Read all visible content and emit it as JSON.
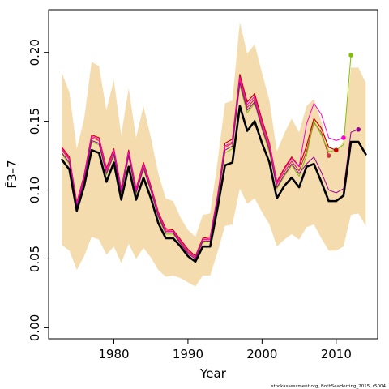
{
  "chart_data": {
    "type": "line",
    "title": "",
    "xlabel": "Year",
    "ylabel": "F̄3–7",
    "xlim": [
      1971.2,
      2015.6
    ],
    "ylim": [
      -0.008,
      0.231
    ],
    "x_ticks": [
      1980,
      1990,
      2000,
      2010
    ],
    "y_ticks": [
      0.0,
      0.05,
      0.1,
      0.15,
      0.2
    ],
    "y_tick_labels": [
      "0.00",
      "0.05",
      "0.10",
      "0.15",
      "0.20"
    ],
    "grid": false,
    "legend": "none",
    "credit": "stockassessment.org, BothSeaHerring_2015, r5004",
    "colors": {
      "band": "#f5dcaf",
      "main": "#000000",
      "retro_1": "#cc0000",
      "retro_2": "#c83c3c",
      "retro_3": "#7fc000",
      "retro_4": "#ff00cc",
      "retro_5": "#990099"
    },
    "band": {
      "x": [
        1973,
        1974,
        1975,
        1976,
        1977,
        1978,
        1979,
        1980,
        1981,
        1982,
        1983,
        1984,
        1985,
        1986,
        1987,
        1988,
        1989,
        1990,
        1991,
        1992,
        1993,
        1994,
        1995,
        1996,
        1997,
        1998,
        1999,
        2000,
        2001,
        2002,
        2003,
        2004,
        2005,
        2006,
        2007,
        2008,
        2009,
        2010,
        2011,
        2012,
        2013,
        2014
      ],
      "lower": [
        0.06,
        0.056,
        0.042,
        0.052,
        0.066,
        0.064,
        0.053,
        0.059,
        0.047,
        0.061,
        0.05,
        0.058,
        0.051,
        0.042,
        0.037,
        0.038,
        0.036,
        0.033,
        0.03,
        0.038,
        0.038,
        0.055,
        0.074,
        0.075,
        0.101,
        0.09,
        0.094,
        0.084,
        0.075,
        0.059,
        0.064,
        0.068,
        0.064,
        0.073,
        0.075,
        0.065,
        0.056,
        0.056,
        0.059,
        0.082,
        0.083,
        0.074
      ],
      "upper": [
        0.185,
        0.171,
        0.13,
        0.152,
        0.193,
        0.19,
        0.158,
        0.18,
        0.14,
        0.174,
        0.138,
        0.161,
        0.138,
        0.112,
        0.094,
        0.092,
        0.08,
        0.071,
        0.066,
        0.082,
        0.083,
        0.121,
        0.163,
        0.165,
        0.222,
        0.199,
        0.206,
        0.185,
        0.165,
        0.128,
        0.141,
        0.152,
        0.142,
        0.161,
        0.166,
        0.15,
        0.13,
        0.129,
        0.135,
        0.189,
        0.189,
        0.178
      ]
    },
    "series": [
      {
        "x": [
          1973,
          1974,
          1975,
          1976,
          1977,
          1978,
          1979,
          1980,
          1981,
          1982,
          1983,
          1984,
          1985,
          1986,
          1987,
          1988,
          1989,
          1990,
          1991,
          1992,
          1993,
          1994,
          1995,
          1996,
          1997,
          1998,
          1999,
          2000,
          2001,
          2002,
          2003,
          2004,
          2005,
          2006,
          2007,
          2008,
          2009,
          2010,
          2011,
          2012,
          2013,
          2014
        ],
        "y": [
          0.122,
          0.115,
          0.085,
          0.103,
          0.129,
          0.127,
          0.106,
          0.12,
          0.093,
          0.117,
          0.093,
          0.109,
          0.094,
          0.076,
          0.065,
          0.065,
          0.059,
          0.052,
          0.048,
          0.059,
          0.059,
          0.087,
          0.118,
          0.12,
          0.161,
          0.143,
          0.15,
          0.134,
          0.12,
          0.094,
          0.103,
          0.109,
          0.102,
          0.117,
          0.119,
          0.106,
          0.092,
          0.092,
          0.096,
          0.135,
          0.135,
          0.126
        ],
        "color_key": "main",
        "width": 2.6
      },
      {
        "x": [
          1973,
          1974,
          1975,
          1976,
          1977,
          1978,
          1979,
          1980,
          1981,
          1982,
          1983,
          1984,
          1985,
          1986,
          1987,
          1988,
          1989,
          1990,
          1991,
          1992,
          1993,
          1994,
          1995,
          1996,
          1997,
          1998,
          1999,
          2000,
          2001,
          2002,
          2003,
          2004,
          2005,
          2006,
          2007,
          2008,
          2009,
          2010
        ],
        "y": [
          0.131,
          0.124,
          0.091,
          0.111,
          0.14,
          0.138,
          0.116,
          0.13,
          0.101,
          0.129,
          0.101,
          0.12,
          0.103,
          0.084,
          0.072,
          0.071,
          0.064,
          0.057,
          0.052,
          0.065,
          0.066,
          0.096,
          0.134,
          0.137,
          0.184,
          0.164,
          0.17,
          0.151,
          0.134,
          0.106,
          0.116,
          0.124,
          0.117,
          0.132,
          0.152,
          0.145,
          0.131,
          0.129
        ],
        "color_key": "retro_1",
        "width": 1.2,
        "end_point": true
      },
      {
        "x": [
          1973,
          1974,
          1975,
          1976,
          1977,
          1978,
          1979,
          1980,
          1981,
          1982,
          1983,
          1984,
          1985,
          1986,
          1987,
          1988,
          1989,
          1990,
          1991,
          1992,
          1993,
          1994,
          1995,
          1996,
          1997,
          1998,
          1999,
          2000,
          2001,
          2002,
          2003,
          2004,
          2005,
          2006,
          2007,
          2008,
          2009
        ],
        "y": [
          0.129,
          0.122,
          0.089,
          0.108,
          0.138,
          0.136,
          0.114,
          0.128,
          0.099,
          0.127,
          0.099,
          0.118,
          0.101,
          0.082,
          0.07,
          0.07,
          0.062,
          0.055,
          0.051,
          0.064,
          0.064,
          0.094,
          0.131,
          0.134,
          0.18,
          0.16,
          0.166,
          0.147,
          0.131,
          0.104,
          0.113,
          0.121,
          0.114,
          0.128,
          0.149,
          0.142,
          0.125
        ],
        "color_key": "retro_2",
        "width": 1.2,
        "end_point": true
      },
      {
        "x": [
          1973,
          1974,
          1975,
          1976,
          1977,
          1978,
          1979,
          1980,
          1981,
          1982,
          1983,
          1984,
          1985,
          1986,
          1987,
          1988,
          1989,
          1990,
          1991,
          1992,
          1993,
          1994,
          1995,
          1996,
          1997,
          1998,
          1999,
          2000,
          2001,
          2002,
          2003,
          2004,
          2005,
          2006,
          2007,
          2008,
          2009,
          2010,
          2011,
          2012
        ],
        "y": [
          0.126,
          0.119,
          0.087,
          0.106,
          0.135,
          0.133,
          0.111,
          0.125,
          0.097,
          0.124,
          0.097,
          0.115,
          0.099,
          0.08,
          0.068,
          0.068,
          0.061,
          0.054,
          0.05,
          0.062,
          0.063,
          0.092,
          0.127,
          0.13,
          0.176,
          0.156,
          0.163,
          0.144,
          0.127,
          0.101,
          0.11,
          0.118,
          0.11,
          0.125,
          0.15,
          0.14,
          0.128,
          0.129,
          0.133,
          0.198
        ],
        "color_key": "retro_3",
        "width": 1.0,
        "end_point": true
      },
      {
        "x": [
          1973,
          1974,
          1975,
          1976,
          1977,
          1978,
          1979,
          1980,
          1981,
          1982,
          1983,
          1984,
          1985,
          1986,
          1987,
          1988,
          1989,
          1990,
          1991,
          1992,
          1993,
          1994,
          1995,
          1996,
          1997,
          1998,
          1999,
          2000,
          2001,
          2002,
          2003,
          2004,
          2005,
          2006,
          2007,
          2008,
          2009,
          2010,
          2011
        ],
        "y": [
          0.13,
          0.123,
          0.09,
          0.11,
          0.139,
          0.137,
          0.115,
          0.129,
          0.1,
          0.128,
          0.1,
          0.119,
          0.102,
          0.083,
          0.071,
          0.07,
          0.063,
          0.056,
          0.051,
          0.064,
          0.065,
          0.095,
          0.132,
          0.135,
          0.182,
          0.162,
          0.168,
          0.149,
          0.133,
          0.105,
          0.115,
          0.123,
          0.117,
          0.148,
          0.163,
          0.155,
          0.138,
          0.136,
          0.138
        ],
        "color_key": "retro_4",
        "width": 1.0,
        "end_point": true
      },
      {
        "x": [
          1973,
          1974,
          1975,
          1976,
          1977,
          1978,
          1979,
          1980,
          1981,
          1982,
          1983,
          1984,
          1985,
          1986,
          1987,
          1988,
          1989,
          1990,
          1991,
          1992,
          1993,
          1994,
          1995,
          1996,
          1997,
          1998,
          1999,
          2000,
          2001,
          2002,
          2003,
          2004,
          2005,
          2006,
          2007,
          2008,
          2009,
          2010,
          2011,
          2012,
          2013
        ],
        "y": [
          0.127,
          0.12,
          0.088,
          0.107,
          0.136,
          0.134,
          0.112,
          0.126,
          0.098,
          0.125,
          0.098,
          0.116,
          0.1,
          0.081,
          0.069,
          0.069,
          0.061,
          0.054,
          0.05,
          0.063,
          0.063,
          0.093,
          0.129,
          0.132,
          0.178,
          0.158,
          0.164,
          0.145,
          0.129,
          0.102,
          0.111,
          0.119,
          0.112,
          0.119,
          0.124,
          0.113,
          0.1,
          0.098,
          0.101,
          0.142,
          0.144
        ],
        "color_key": "retro_5",
        "width": 1.0,
        "end_point": true
      }
    ]
  }
}
